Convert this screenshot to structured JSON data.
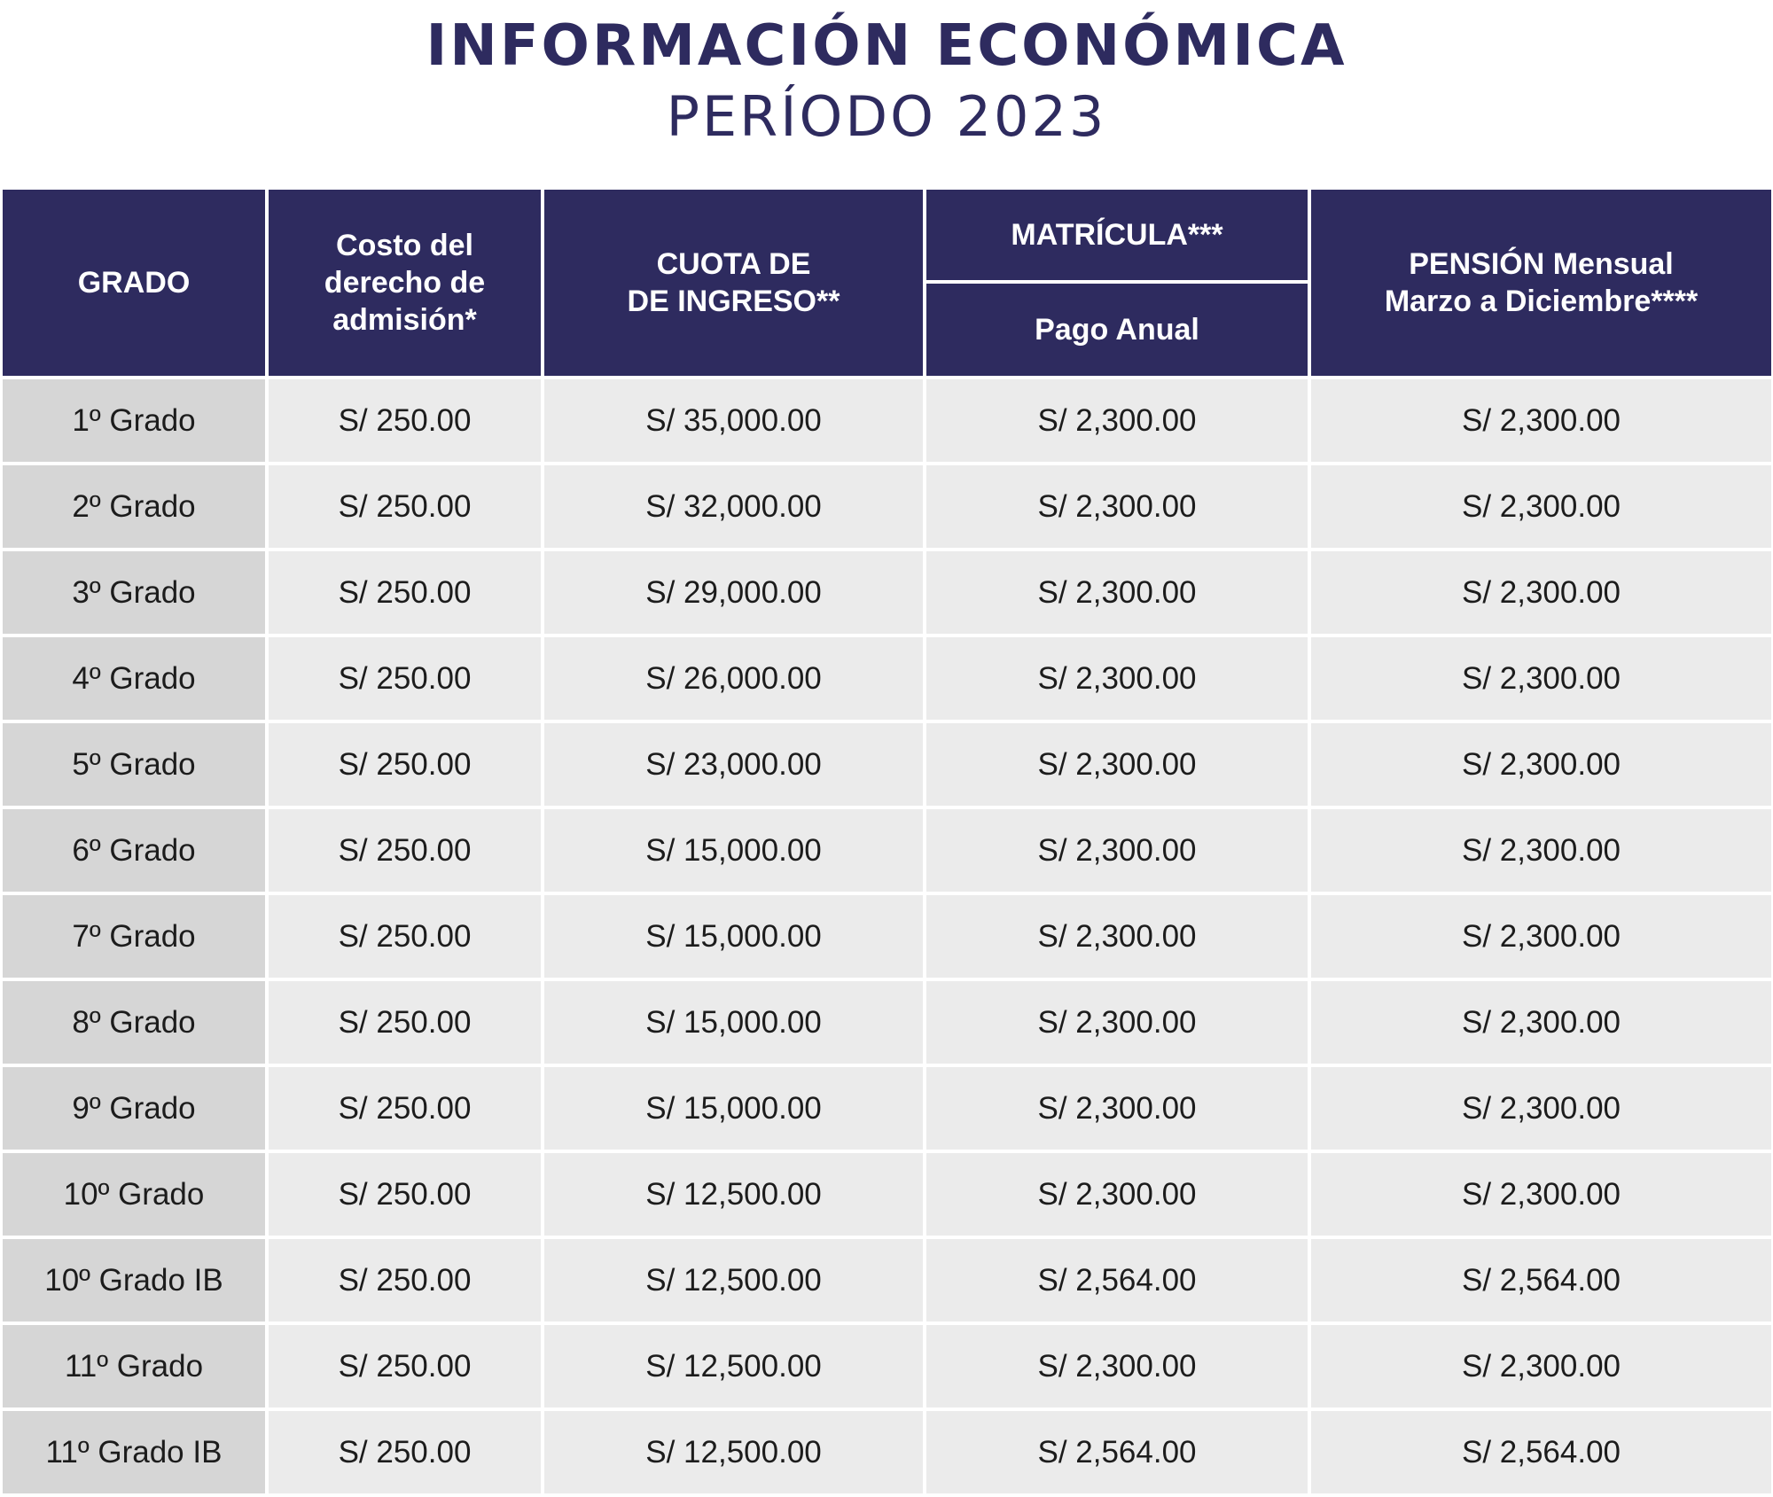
{
  "title": "INFORMACIÓN ECONÓMICA",
  "subtitle": "PERÍODO 2023",
  "headers": {
    "grado": "GRADO",
    "costo_l1": "Costo del",
    "costo_l2": "derecho de",
    "costo_l3": "admisión*",
    "cuota_l1": "CUOTA DE",
    "cuota_l2": "DE INGRESO**",
    "matricula": "MATRÍCULA***",
    "pago_anual": "Pago Anual",
    "pension_l1": "PENSIÓN Mensual",
    "pension_l2": "Marzo a Diciembre****"
  },
  "rows": [
    {
      "grado": "1º Grado",
      "costo": "S/ 250.00",
      "cuota": "S/ 35,000.00",
      "matricula": "S/ 2,300.00",
      "pension": "S/ 2,300.00"
    },
    {
      "grado": "2º Grado",
      "costo": "S/ 250.00",
      "cuota": "S/ 32,000.00",
      "matricula": "S/ 2,300.00",
      "pension": "S/ 2,300.00"
    },
    {
      "grado": "3º Grado",
      "costo": "S/ 250.00",
      "cuota": "S/ 29,000.00",
      "matricula": "S/ 2,300.00",
      "pension": "S/ 2,300.00"
    },
    {
      "grado": "4º Grado",
      "costo": "S/ 250.00",
      "cuota": "S/ 26,000.00",
      "matricula": "S/ 2,300.00",
      "pension": "S/ 2,300.00"
    },
    {
      "grado": "5º Grado",
      "costo": "S/ 250.00",
      "cuota": "S/ 23,000.00",
      "matricula": "S/ 2,300.00",
      "pension": "S/ 2,300.00"
    },
    {
      "grado": "6º Grado",
      "costo": "S/ 250.00",
      "cuota": "S/ 15,000.00",
      "matricula": "S/ 2,300.00",
      "pension": "S/ 2,300.00"
    },
    {
      "grado": "7º Grado",
      "costo": "S/ 250.00",
      "cuota": "S/ 15,000.00",
      "matricula": "S/ 2,300.00",
      "pension": "S/ 2,300.00"
    },
    {
      "grado": "8º Grado",
      "costo": "S/ 250.00",
      "cuota": "S/ 15,000.00",
      "matricula": "S/ 2,300.00",
      "pension": "S/ 2,300.00"
    },
    {
      "grado": "9º Grado",
      "costo": "S/ 250.00",
      "cuota": "S/ 15,000.00",
      "matricula": "S/ 2,300.00",
      "pension": "S/ 2,300.00"
    },
    {
      "grado": "10º Grado",
      "costo": "S/ 250.00",
      "cuota": "S/ 12,500.00",
      "matricula": "S/ 2,300.00",
      "pension": "S/ 2,300.00"
    },
    {
      "grado": "10º Grado IB",
      "costo": "S/ 250.00",
      "cuota": "S/ 12,500.00",
      "matricula": "S/ 2,564.00",
      "pension": "S/ 2,564.00"
    },
    {
      "grado": "11º Grado",
      "costo": "S/ 250.00",
      "cuota": "S/ 12,500.00",
      "matricula": "S/ 2,300.00",
      "pension": "S/ 2,300.00"
    },
    {
      "grado": "11º Grado IB",
      "costo": "S/ 250.00",
      "cuota": "S/ 12,500.00",
      "matricula": "S/ 2,564.00",
      "pension": "S/ 2,564.00"
    }
  ],
  "colors": {
    "header_bg": "#2e2b5f",
    "title_color": "#2e2b5f",
    "cell_bg": "#ebebeb",
    "grado_cell_bg": "#d6d6d6"
  }
}
